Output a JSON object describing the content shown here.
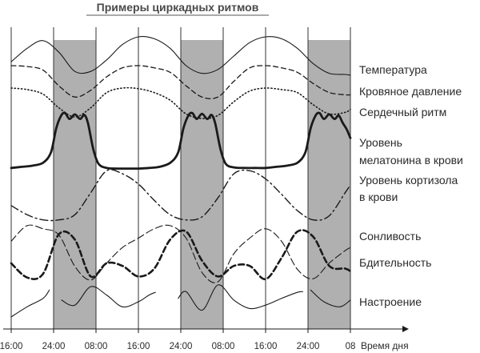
{
  "colors": {
    "line": "#1a1a1a",
    "night": "#b0b0b0",
    "grid": "#333333",
    "title_underline": "#555555"
  },
  "chart_data": {
    "type": "line",
    "title": "Примеры циркадных ритмов",
    "xlabel": "Время дня",
    "x_ticks": [
      "16:00",
      "24:00",
      "08:00",
      "16:00",
      "24:00",
      "08:00",
      "16:00",
      "24:00",
      "08"
    ],
    "x_range_hours": [
      0,
      64
    ],
    "night_intervals_hours": [
      [
        8,
        16
      ],
      [
        32,
        40
      ],
      [
        56,
        64
      ]
    ],
    "y_range": [
      0,
      1
    ],
    "series": [
      {
        "name": "Температура",
        "labels": [
          "Температура"
        ],
        "style": "thin",
        "x": [
          0,
          3,
          6,
          9,
          12,
          15,
          18,
          21,
          24,
          27,
          30,
          33,
          36,
          39,
          42,
          45,
          48,
          51,
          54,
          57,
          60,
          63,
          64
        ],
        "y": [
          0.35,
          0.7,
          0.9,
          0.6,
          0.1,
          0.1,
          0.4,
          0.8,
          1.0,
          0.95,
          0.7,
          0.25,
          0.05,
          0.15,
          0.5,
          0.85,
          1.0,
          0.95,
          0.7,
          0.3,
          0.05,
          0.02,
          0.0
        ]
      },
      {
        "name": "Кровяное давление",
        "labels": [
          "Кровяное давление"
        ],
        "style": "dashed",
        "x": [
          0,
          3,
          6,
          9,
          12,
          15,
          18,
          21,
          24,
          27,
          30,
          33,
          36,
          39,
          42,
          45,
          48,
          51,
          54,
          57,
          60,
          63,
          64
        ],
        "y": [
          1.0,
          0.98,
          0.9,
          0.55,
          0.3,
          0.45,
          0.75,
          0.95,
          1.0,
          0.95,
          0.85,
          0.55,
          0.3,
          0.3,
          0.65,
          0.95,
          1.0,
          0.95,
          0.85,
          0.6,
          0.4,
          0.35,
          0.35
        ]
      },
      {
        "name": "Сердечный ритм",
        "labels": [
          "Сердечный ритм"
        ],
        "style": "dotted",
        "x": [
          0,
          3,
          6,
          9,
          12,
          15,
          18,
          21,
          24,
          27,
          30,
          33,
          36,
          39,
          42,
          45,
          48,
          51,
          54,
          57,
          60,
          63,
          64
        ],
        "y": [
          1.0,
          0.95,
          0.8,
          0.35,
          0.05,
          0.35,
          0.85,
          1.0,
          0.98,
          0.85,
          0.6,
          0.15,
          0.0,
          0.1,
          0.55,
          0.9,
          1.0,
          0.95,
          0.85,
          0.45,
          0.15,
          0.2,
          0.3
        ]
      },
      {
        "name": "Уровень мелатонина в крови",
        "labels": [
          "Уровень",
          "мелатонина в крови"
        ],
        "style": "bold",
        "x": [
          0,
          2,
          4,
          6,
          7.5,
          8.5,
          9.5,
          10.2,
          11,
          12,
          13,
          13.8,
          14.5,
          15.5,
          16.5,
          18,
          20,
          22,
          24,
          26,
          28,
          30,
          31.5,
          32.5,
          33.5,
          34.2,
          35,
          36,
          37,
          37.8,
          38.5,
          39.5,
          40.5,
          42,
          44,
          46,
          48,
          50,
          52,
          54,
          55.5,
          56.5,
          57.5,
          58.2,
          59,
          60,
          61,
          61.8,
          62.5,
          63.3,
          64
        ],
        "y": [
          0.03,
          0.05,
          0.07,
          0.12,
          0.3,
          0.72,
          0.95,
          0.98,
          0.88,
          0.96,
          0.88,
          0.95,
          0.8,
          0.35,
          0.1,
          0.03,
          0.02,
          0.02,
          0.02,
          0.03,
          0.05,
          0.12,
          0.3,
          0.72,
          0.95,
          0.98,
          0.88,
          0.97,
          0.88,
          0.95,
          0.8,
          0.35,
          0.1,
          0.04,
          0.03,
          0.03,
          0.03,
          0.05,
          0.07,
          0.12,
          0.3,
          0.72,
          0.95,
          0.98,
          0.88,
          0.96,
          0.88,
          0.94,
          0.82,
          0.7,
          0.55
        ]
      },
      {
        "name": "Уровень кортизола в крови",
        "labels": [
          "Уровень кортизола",
          "в крови"
        ],
        "style": "dashdot",
        "x": [
          0,
          3,
          6,
          9,
          12,
          15,
          18,
          21,
          24,
          27,
          30,
          33,
          36,
          39,
          42,
          45,
          48,
          51,
          54,
          57,
          60,
          63,
          64
        ],
        "y": [
          0.3,
          0.12,
          0.02,
          0.02,
          0.12,
          0.55,
          0.98,
          0.92,
          0.72,
          0.4,
          0.12,
          0.02,
          0.08,
          0.45,
          0.92,
          0.98,
          0.82,
          0.52,
          0.2,
          0.02,
          0.1,
          0.55,
          0.7
        ]
      },
      {
        "name": "Сонливость",
        "labels": [
          "Сонливость"
        ],
        "style": "dashed-thin",
        "x": [
          0,
          3,
          6,
          9,
          12,
          15,
          18,
          21,
          24,
          27,
          30,
          33,
          36,
          39,
          42,
          45,
          48,
          51,
          54,
          57,
          60,
          63,
          64
        ],
        "y": [
          0.7,
          0.95,
          0.9,
          0.8,
          0.3,
          0.08,
          0.35,
          0.6,
          0.75,
          0.9,
          0.95,
          0.75,
          0.2,
          0.05,
          0.5,
          0.75,
          0.9,
          0.7,
          0.25,
          0.1,
          0.35,
          0.55,
          0.6
        ]
      },
      {
        "name": "Бдительность",
        "labels": [
          "Бдительность"
        ],
        "style": "dashed-bold",
        "x": [
          0,
          3,
          6,
          9,
          12,
          15,
          18,
          21,
          24,
          27,
          30,
          33,
          36,
          39,
          42,
          45,
          48,
          51,
          54,
          57,
          60,
          63,
          64
        ],
        "y": [
          0.35,
          0.08,
          0.15,
          0.9,
          0.8,
          0.1,
          0.35,
          0.3,
          0.1,
          0.25,
          0.8,
          0.95,
          0.4,
          0.1,
          0.3,
          0.3,
          0.05,
          0.45,
          0.95,
          0.85,
          0.3,
          0.25,
          0.2
        ]
      },
      {
        "name": "Настроение",
        "labels": [
          "Настроение"
        ],
        "style": "thin-segments",
        "segments": [
          {
            "x": [
              0,
              3,
              6,
              7.2
            ],
            "y": [
              0.05,
              0.35,
              0.6,
              0.85
            ]
          },
          {
            "x": [
              9.5,
              12,
              15,
              18,
              21,
              24,
              26,
              27.2
            ],
            "y": [
              0.55,
              0.4,
              0.95,
              0.7,
              0.35,
              0.5,
              0.7,
              0.78
            ]
          },
          {
            "x": [
              31.5,
              33,
              36,
              39,
              42,
              45,
              48,
              51,
              54,
              55
            ],
            "y": [
              0.6,
              0.8,
              0.25,
              1.0,
              0.55,
              0.3,
              0.4,
              0.6,
              0.78,
              0.8
            ]
          },
          {
            "x": [
              56.5,
              59,
              62,
              64
            ],
            "y": [
              0.85,
              0.5,
              0.35,
              0.55
            ]
          }
        ]
      }
    ]
  }
}
